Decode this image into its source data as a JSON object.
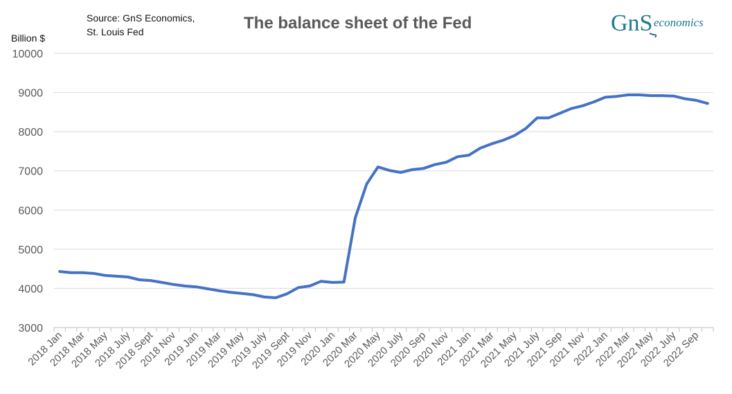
{
  "chart_data": {
    "type": "line",
    "title": "The balance sheet of the Fed",
    "ylabel": "Billion $",
    "source_lines": [
      "Source: GnS Economics,",
      "St. Louis Fed"
    ],
    "logo": {
      "main": "GnS",
      "word": "economics"
    },
    "ylim": [
      3000,
      10000
    ],
    "yticks": [
      3000,
      4000,
      5000,
      6000,
      7000,
      8000,
      9000,
      10000
    ],
    "grid": true,
    "legend": "none",
    "line_color": "#4472C4",
    "x_tick_labels": [
      "2018 Jan",
      "2018 Mar",
      "2018 May",
      "2018 July",
      "2018 Sept",
      "2018 Nov",
      "2019 Jan",
      "2019 Mar",
      "2019 May",
      "2019 July",
      "2019 Sept",
      "2019 Nov",
      "2020 Jan",
      "2020 Mar",
      "2020 May",
      "2020 July",
      "2020 Sep",
      "2020 Nov",
      "2021 Jan",
      "2021 Mar",
      "2021 May",
      "2021 July",
      "2021 Sep",
      "2021 Nov",
      "2022 Jan",
      "2022 Mar",
      "2022 May",
      "2022 July",
      "2022 Sep"
    ],
    "series": [
      {
        "values": [
          4430,
          4400,
          4400,
          4380,
          4330,
          4310,
          4290,
          4220,
          4200,
          4150,
          4100,
          4060,
          4040,
          3990,
          3940,
          3900,
          3870,
          3840,
          3780,
          3760,
          3860,
          4020,
          4060,
          4180,
          4150,
          4160,
          5800,
          6660,
          7100,
          7010,
          6960,
          7030,
          7060,
          7160,
          7220,
          7360,
          7400,
          7580,
          7690,
          7780,
          7900,
          8080,
          8350,
          8350,
          8470,
          8590,
          8660,
          8760,
          8880,
          8900,
          8940,
          8940,
          8920,
          8920,
          8910,
          8840,
          8800,
          8720
        ]
      }
    ]
  }
}
